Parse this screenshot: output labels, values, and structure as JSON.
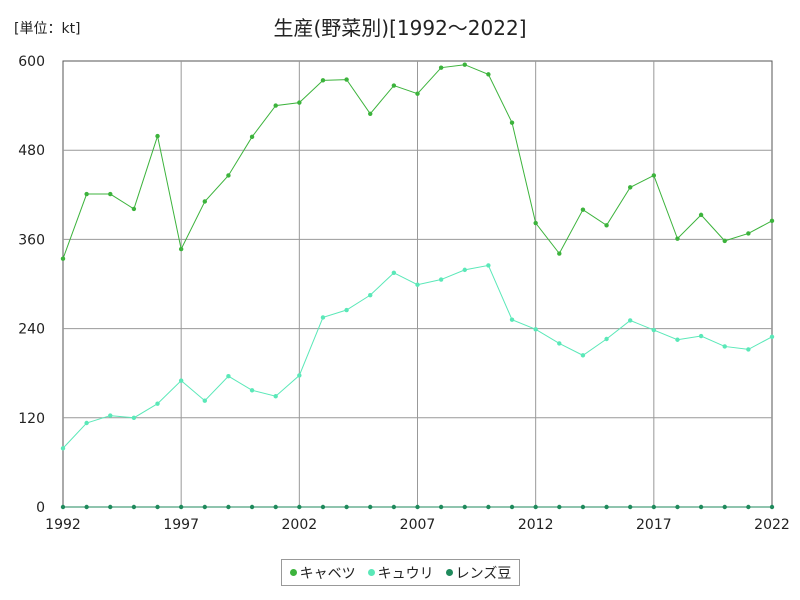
{
  "unit_label": "[単位：kt]",
  "title": "生産(野菜別)[1992～2022]",
  "chart_data": {
    "type": "line",
    "x": [
      1992,
      1993,
      1994,
      1995,
      1996,
      1997,
      1998,
      1999,
      2000,
      2001,
      2002,
      2003,
      2004,
      2005,
      2006,
      2007,
      2008,
      2009,
      2010,
      2011,
      2012,
      2013,
      2014,
      2015,
      2016,
      2017,
      2018,
      2019,
      2020,
      2021,
      2022
    ],
    "xticks": [
      1992,
      1997,
      2002,
      2007,
      2012,
      2017,
      2022
    ],
    "yticks": [
      0,
      120,
      240,
      360,
      480,
      600
    ],
    "xlim": [
      1992,
      2022
    ],
    "ylim": [
      0,
      600
    ],
    "grid": true,
    "legend_position": "bottom",
    "series": [
      {
        "name": "キャベツ",
        "color": "#3cb33c",
        "values": [
          334,
          421,
          421,
          401,
          499,
          347,
          411,
          446,
          498,
          540,
          544,
          574,
          575,
          529,
          567,
          556,
          591,
          595,
          582,
          517,
          382,
          341,
          400,
          379,
          430,
          446,
          361,
          393,
          358,
          368,
          385
        ]
      },
      {
        "name": "キュウリ",
        "color": "#5ae8b8",
        "values": [
          79,
          113,
          123,
          120,
          139,
          170,
          143,
          176,
          157,
          149,
          177,
          255,
          265,
          285,
          315,
          299,
          306,
          319,
          325,
          252,
          239,
          220,
          204,
          226,
          251,
          238,
          225,
          230,
          216,
          212,
          229
        ]
      },
      {
        "name": "レンズ豆",
        "color": "#1f8a5c",
        "values": [
          0,
          0,
          0,
          0,
          0,
          0,
          0,
          0,
          0,
          0,
          0,
          0,
          0,
          0,
          0,
          0,
          0,
          0,
          0,
          0,
          0,
          0,
          0,
          0,
          0,
          0,
          0,
          0,
          0,
          0,
          0
        ]
      }
    ]
  }
}
